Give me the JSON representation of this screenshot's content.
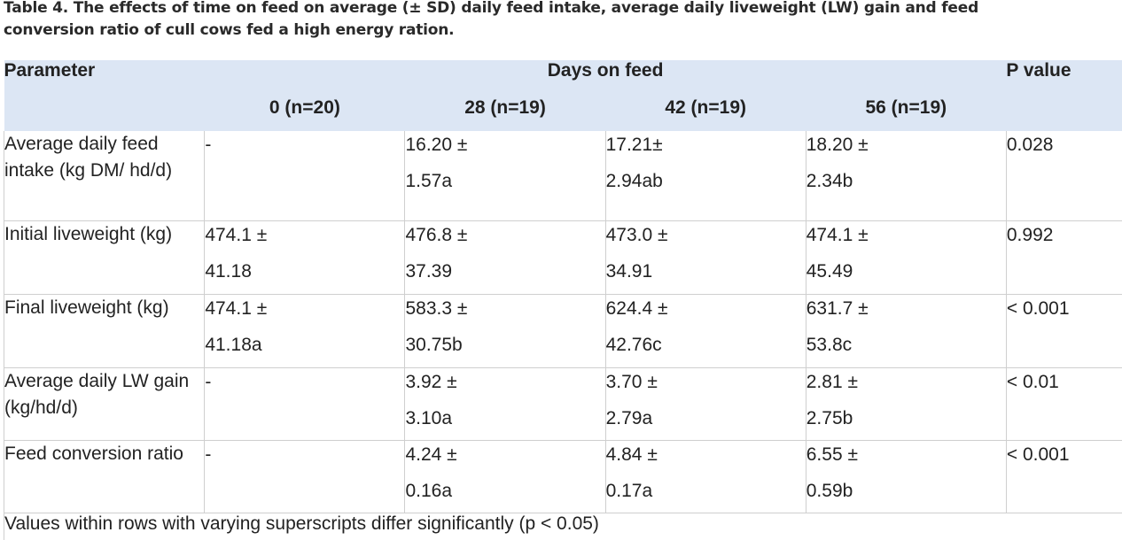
{
  "caption": "Table 4. The effects of time on feed on average (± SD) daily feed intake, average daily liveweight (LW) gain and feed conversion ratio of cull cows fed a high energy ration.",
  "header": {
    "parameter": "Parameter",
    "days_on_feed": "Days on feed",
    "p_value": "P value",
    "days": [
      "0 (n=20)",
      "28 (n=19)",
      "42 (n=19)",
      "56 (n=19)"
    ]
  },
  "rows": [
    {
      "parameter": "Average daily feed intake (kg DM/ hd/d)",
      "cells": [
        {
          "mean": "-",
          "sd": ""
        },
        {
          "mean": "16.20 ±",
          "sd": "1.57a"
        },
        {
          "mean": "17.21±",
          "sd": "2.94ab"
        },
        {
          "mean": "18.20 ±",
          "sd": "2.34b"
        }
      ],
      "p": "0.028"
    },
    {
      "parameter": "Initial liveweight (kg)",
      "cells": [
        {
          "mean": "474.1 ±",
          "sd": "41.18"
        },
        {
          "mean": "476.8 ±",
          "sd": "37.39"
        },
        {
          "mean": "473.0 ±",
          "sd": "34.91"
        },
        {
          "mean": "474.1 ±",
          "sd": "45.49"
        }
      ],
      "p": "0.992"
    },
    {
      "parameter": "Final liveweight (kg)",
      "cells": [
        {
          "mean": "474.1 ±",
          "sd": "41.18a"
        },
        {
          "mean": "583.3 ±",
          "sd": "30.75b"
        },
        {
          "mean": "624.4 ±",
          "sd": "42.76c"
        },
        {
          "mean": "631.7 ±",
          "sd": "53.8c"
        }
      ],
      "p": "< 0.001"
    },
    {
      "parameter": "Average daily LW gain (kg/hd/d)",
      "cells": [
        {
          "mean": "-",
          "sd": ""
        },
        {
          "mean": "3.92 ±",
          "sd": "3.10a"
        },
        {
          "mean": "3.70 ±",
          "sd": "2.79a"
        },
        {
          "mean": "2.81 ±",
          "sd": "2.75b"
        }
      ],
      "p": "< 0.01"
    },
    {
      "parameter": "Feed conversion ratio",
      "cells": [
        {
          "mean": "-",
          "sd": ""
        },
        {
          "mean": "4.24 ±",
          "sd": "0.16a"
        },
        {
          "mean": "4.84 ±",
          "sd": "0.17a"
        },
        {
          "mean": "6.55 ±",
          "sd": "0.59b"
        }
      ],
      "p": "< 0.001"
    }
  ],
  "footnote": "Values within rows with varying superscripts differ significantly (p < 0.05)"
}
